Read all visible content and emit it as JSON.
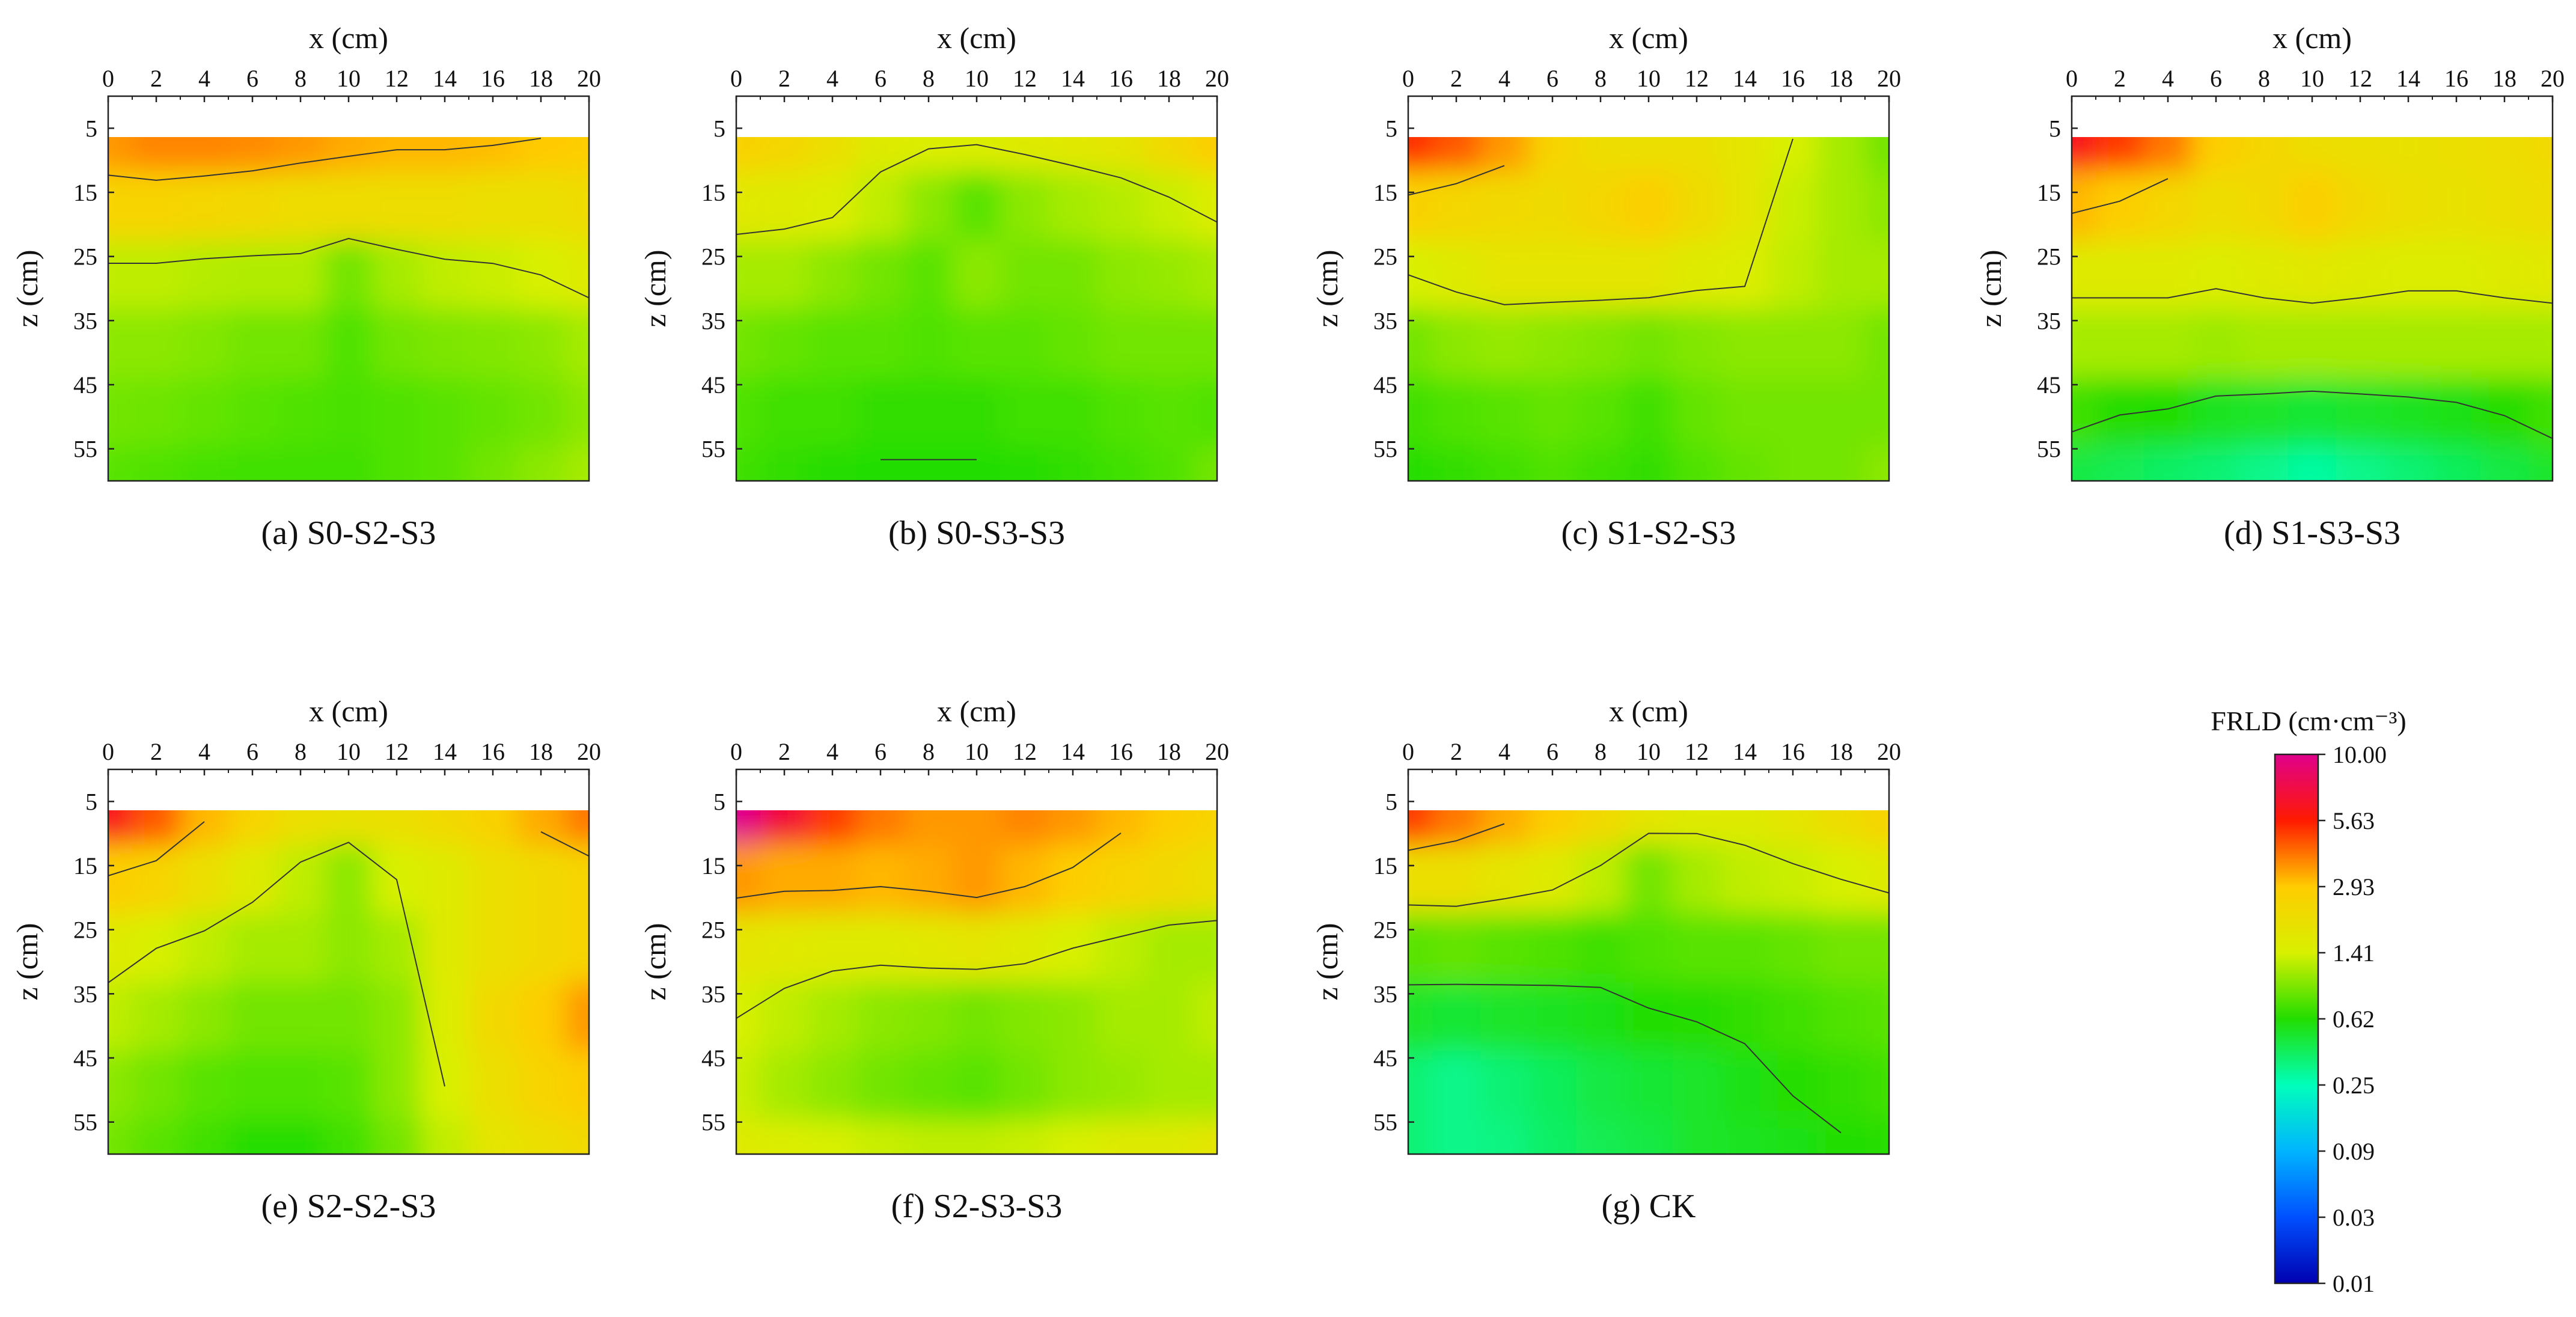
{
  "chart_data": {
    "type": "heatmap",
    "quantity": "FRLD",
    "x_axis": {
      "label": "x (cm)",
      "range": [
        0,
        20
      ],
      "ticks": [
        "0",
        "2",
        "4",
        "6",
        "8",
        "10",
        "12",
        "14",
        "16",
        "18",
        "20"
      ]
    },
    "z_axis": {
      "label": "z (cm)",
      "range": [
        0,
        60
      ],
      "ticks": [
        "5",
        "15",
        "25",
        "35",
        "45",
        "55"
      ],
      "direction": "downward"
    },
    "colorbar": {
      "title": "FRLD (cm·cm⁻³)",
      "levels": [
        10.0,
        5.63,
        2.93,
        1.41,
        0.62,
        0.25,
        0.09,
        0.03,
        0.01
      ],
      "labels": [
        "10.00",
        "5.63",
        "2.93",
        "1.41",
        "0.62",
        "0.25",
        "0.09",
        "0.03",
        "0.01"
      ],
      "colors": [
        "#e0008c",
        "#ff1a00",
        "#ffcc00",
        "#d8f000",
        "#22dd00",
        "#00ffbb",
        "#00b4ff",
        "#0050ff",
        "#0000b0"
      ]
    },
    "panels": [
      {
        "id": "a",
        "caption": "(a) S0-S2-S3",
        "grid_note": "approx. log10(FRLD), rows z=5..55, cols x=0..20 step 2",
        "values": [
          [
            0.55,
            0.58,
            0.58,
            0.57,
            0.55,
            0.52,
            0.5,
            0.5,
            0.49,
            0.47,
            0.46
          ],
          [
            0.4,
            0.4,
            0.38,
            0.36,
            0.33,
            0.33,
            0.32,
            0.32,
            0.3,
            0.3,
            0.33
          ],
          [
            0.1,
            0.1,
            0.08,
            0.07,
            0.07,
            -0.05,
            0.05,
            0.1,
            0.12,
            0.15,
            0.2
          ],
          [
            0.0,
            0.0,
            -0.02,
            -0.05,
            -0.05,
            -0.12,
            -0.05,
            -0.03,
            -0.02,
            0.0,
            0.05
          ],
          [
            -0.05,
            -0.06,
            -0.08,
            -0.1,
            -0.12,
            -0.13,
            -0.12,
            -0.1,
            -0.08,
            -0.05,
            0.0
          ],
          [
            -0.1,
            -0.12,
            -0.14,
            -0.15,
            -0.15,
            -0.15,
            -0.12,
            -0.1,
            -0.05,
            0.0,
            0.05
          ]
        ]
      },
      {
        "id": "b",
        "caption": "(b) S0-S3-S3",
        "grid_note": "approx. log10(FRLD)",
        "values": [
          [
            0.42,
            0.38,
            0.3,
            0.2,
            0.18,
            0.18,
            0.2,
            0.22,
            0.25,
            0.35,
            0.45
          ],
          [
            0.22,
            0.2,
            0.18,
            0.1,
            0.0,
            -0.1,
            0.0,
            0.05,
            0.08,
            0.12,
            0.18
          ],
          [
            0.05,
            0.05,
            0.0,
            -0.05,
            -0.1,
            0.0,
            -0.05,
            -0.05,
            0.0,
            0.02,
            0.05
          ],
          [
            -0.05,
            -0.08,
            -0.1,
            -0.1,
            -0.12,
            -0.1,
            -0.1,
            -0.08,
            -0.05,
            -0.05,
            -0.05
          ],
          [
            -0.12,
            -0.15,
            -0.15,
            -0.18,
            -0.18,
            -0.18,
            -0.15,
            -0.15,
            -0.12,
            -0.1,
            -0.12
          ],
          [
            -0.15,
            -0.18,
            -0.2,
            -0.22,
            -0.22,
            -0.22,
            -0.2,
            -0.18,
            -0.15,
            -0.12,
            -0.05
          ]
        ]
      },
      {
        "id": "c",
        "caption": "(c) S1-S2-S3",
        "grid_note": "approx. log10(FRLD)",
        "values": [
          [
            0.72,
            0.65,
            0.55,
            0.4,
            0.32,
            0.3,
            0.3,
            0.25,
            0.15,
            0.05,
            -0.05
          ],
          [
            0.42,
            0.38,
            0.35,
            0.34,
            0.38,
            0.44,
            0.34,
            0.25,
            0.12,
            0.05,
            0.0
          ],
          [
            0.15,
            0.2,
            0.25,
            0.25,
            0.25,
            0.25,
            0.2,
            0.18,
            0.1,
            0.05,
            0.05
          ],
          [
            -0.05,
            0.0,
            0.02,
            0.0,
            -0.02,
            -0.05,
            -0.02,
            0.0,
            0.0,
            0.0,
            -0.05
          ],
          [
            -0.15,
            -0.12,
            -0.1,
            -0.08,
            -0.1,
            -0.15,
            -0.08,
            -0.05,
            -0.05,
            -0.05,
            -0.05
          ],
          [
            -0.2,
            -0.18,
            -0.15,
            -0.12,
            -0.15,
            -0.18,
            -0.12,
            -0.08,
            -0.05,
            -0.05,
            0.0
          ]
        ]
      },
      {
        "id": "d",
        "caption": "(d) S1-S3-S3",
        "grid_note": "approx. log10(FRLD)",
        "values": [
          [
            0.8,
            0.7,
            0.6,
            0.45,
            0.38,
            0.32,
            0.3,
            0.28,
            0.3,
            0.32,
            0.35
          ],
          [
            0.5,
            0.45,
            0.38,
            0.32,
            0.35,
            0.44,
            0.35,
            0.3,
            0.28,
            0.3,
            0.32
          ],
          [
            0.2,
            0.2,
            0.2,
            0.18,
            0.2,
            0.22,
            0.2,
            0.18,
            0.18,
            0.2,
            0.22
          ],
          [
            0.05,
            0.05,
            0.05,
            0.03,
            0.05,
            0.05,
            0.05,
            0.05,
            0.05,
            0.05,
            0.05
          ],
          [
            -0.15,
            -0.2,
            -0.22,
            -0.28,
            -0.3,
            -0.32,
            -0.3,
            -0.28,
            -0.25,
            -0.2,
            -0.15
          ],
          [
            -0.35,
            -0.38,
            -0.42,
            -0.45,
            -0.5,
            -0.55,
            -0.5,
            -0.45,
            -0.4,
            -0.35,
            -0.3
          ]
        ]
      },
      {
        "id": "e",
        "caption": "(e) S2-S2-S3",
        "grid_note": "approx. log10(FRLD)",
        "values": [
          [
            0.8,
            0.65,
            0.5,
            0.4,
            0.3,
            0.28,
            0.3,
            0.35,
            0.42,
            0.52,
            0.6
          ],
          [
            0.45,
            0.4,
            0.3,
            0.2,
            0.1,
            0.0,
            0.15,
            0.2,
            0.3,
            0.35,
            0.4
          ],
          [
            0.2,
            0.15,
            0.1,
            0.05,
            0.05,
            0.0,
            0.05,
            0.2,
            0.3,
            0.35,
            0.4
          ],
          [
            0.1,
            0.05,
            0.0,
            -0.05,
            -0.05,
            -0.05,
            0.0,
            0.18,
            0.35,
            0.45,
            0.55
          ],
          [
            0.0,
            -0.05,
            -0.1,
            -0.12,
            -0.12,
            -0.1,
            0.0,
            0.15,
            0.3,
            0.4,
            0.45
          ],
          [
            -0.05,
            -0.1,
            -0.15,
            -0.2,
            -0.2,
            -0.15,
            -0.05,
            0.1,
            0.25,
            0.3,
            0.35
          ]
        ]
      },
      {
        "id": "f",
        "caption": "(f) S2-S3-S3",
        "grid_note": "approx. log10(FRLD)",
        "values": [
          [
            1.0,
            0.85,
            0.7,
            0.6,
            0.55,
            0.55,
            0.58,
            0.55,
            0.5,
            0.45,
            0.4
          ],
          [
            0.55,
            0.52,
            0.52,
            0.5,
            0.52,
            0.55,
            0.5,
            0.45,
            0.4,
            0.35,
            0.3
          ],
          [
            0.25,
            0.22,
            0.2,
            0.2,
            0.22,
            0.24,
            0.2,
            0.15,
            0.1,
            0.05,
            0.05
          ],
          [
            0.15,
            0.1,
            0.05,
            0.0,
            -0.02,
            -0.05,
            -0.02,
            0.0,
            0.05,
            0.05,
            0.1
          ],
          [
            0.12,
            0.05,
            0.0,
            -0.05,
            -0.08,
            -0.1,
            -0.05,
            0.0,
            0.02,
            0.05,
            0.05
          ],
          [
            0.2,
            0.18,
            0.15,
            0.12,
            0.1,
            0.1,
            0.12,
            0.15,
            0.2,
            0.2,
            0.25
          ]
        ]
      },
      {
        "id": "g",
        "caption": "(g) CK",
        "grid_note": "approx. log10(FRLD)",
        "values": [
          [
            0.7,
            0.6,
            0.52,
            0.45,
            0.35,
            0.25,
            0.2,
            0.2,
            0.25,
            0.32,
            0.4
          ],
          [
            0.3,
            0.3,
            0.25,
            0.2,
            0.1,
            -0.05,
            0.05,
            0.1,
            0.12,
            0.15,
            0.2
          ],
          [
            -0.1,
            -0.08,
            -0.1,
            -0.12,
            -0.15,
            -0.12,
            -0.1,
            -0.1,
            -0.08,
            -0.05,
            -0.05
          ],
          [
            -0.3,
            -0.32,
            -0.3,
            -0.28,
            -0.25,
            -0.22,
            -0.2,
            -0.18,
            -0.15,
            -0.12,
            -0.1
          ],
          [
            -0.45,
            -0.5,
            -0.45,
            -0.4,
            -0.35,
            -0.32,
            -0.3,
            -0.25,
            -0.2,
            -0.18,
            -0.15
          ],
          [
            -0.45,
            -0.5,
            -0.48,
            -0.42,
            -0.38,
            -0.35,
            -0.3,
            -0.28,
            -0.25,
            -0.22,
            -0.2
          ]
        ]
      }
    ]
  }
}
